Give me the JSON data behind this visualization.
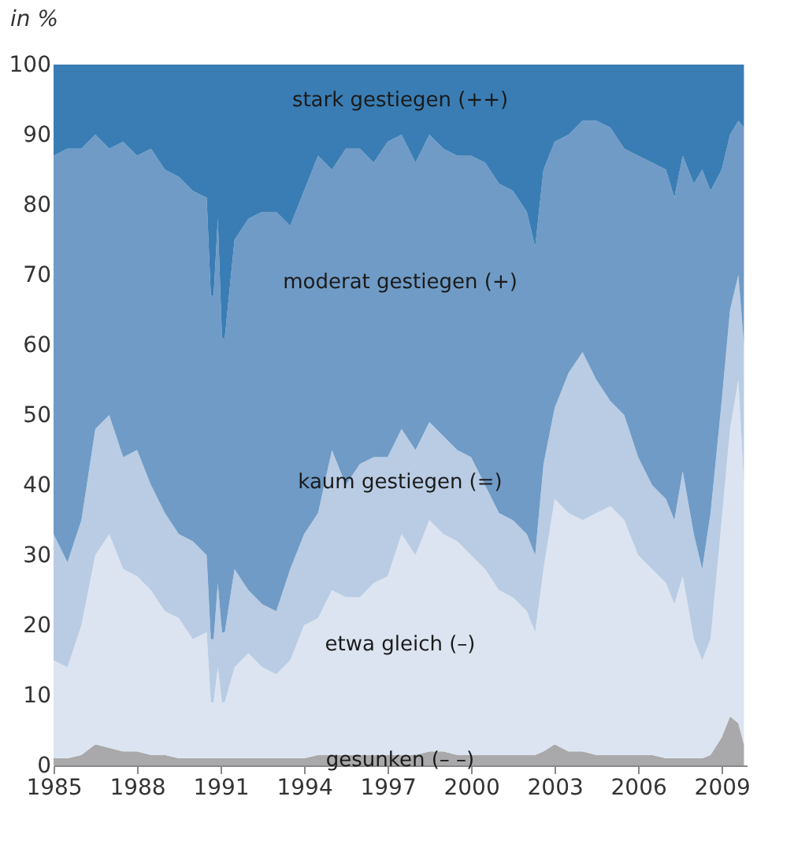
{
  "chart_data": {
    "type": "area",
    "stacked": true,
    "ylabel": "in %",
    "legend": false,
    "grid": false,
    "xlim": [
      1985,
      2009.9
    ],
    "xticks": [
      1985,
      1988,
      1991,
      1994,
      1997,
      2000,
      2003,
      2006,
      2009
    ],
    "ylim": [
      0,
      100
    ],
    "yticks": [
      0,
      10,
      20,
      30,
      40,
      50,
      60,
      70,
      80,
      90,
      100
    ],
    "x": [
      1985.0,
      1985.5,
      1986.0,
      1986.5,
      1987.0,
      1987.5,
      1988.0,
      1988.5,
      1989.0,
      1989.5,
      1990.0,
      1990.5,
      1990.65,
      1990.75,
      1990.9,
      1991.05,
      1991.15,
      1991.5,
      1992.0,
      1992.5,
      1993.0,
      1993.5,
      1994.0,
      1994.5,
      1995.0,
      1995.5,
      1996.0,
      1996.5,
      1997.0,
      1997.5,
      1998.0,
      1998.5,
      1999.0,
      1999.5,
      2000.0,
      2000.5,
      2001.0,
      2001.5,
      2002.0,
      2002.3,
      2002.6,
      2003.0,
      2003.5,
      2004.0,
      2004.5,
      2005.0,
      2005.5,
      2006.0,
      2006.5,
      2007.0,
      2007.3,
      2007.6,
      2008.0,
      2008.3,
      2008.6,
      2009.0,
      2009.3,
      2009.6,
      2009.8
    ],
    "series": [
      {
        "name": "gesunken (– –)",
        "color": "#a9a9ab",
        "values": [
          1,
          1,
          1.5,
          3,
          2.5,
          2,
          2,
          1.5,
          1.5,
          1,
          1,
          1,
          1,
          1,
          1,
          1,
          1,
          1,
          1,
          1,
          1,
          1,
          1,
          1.5,
          1.5,
          1.5,
          1.5,
          1.5,
          1.5,
          1.5,
          1.5,
          2,
          2,
          1.5,
          1.5,
          1.5,
          1.5,
          1.5,
          1.5,
          1.5,
          2,
          3,
          2,
          2,
          1.5,
          1.5,
          1.5,
          1.5,
          1.5,
          1,
          1,
          1,
          1,
          1,
          1.5,
          4,
          7,
          6,
          3
        ]
      },
      {
        "name": "etwa gleich (–)",
        "color": "#dbe4f0",
        "values": [
          14,
          13,
          18.5,
          27,
          30.5,
          26,
          25,
          23.5,
          20.5,
          20,
          17,
          18,
          8,
          8,
          13,
          8,
          8,
          13,
          15,
          13,
          12,
          14,
          19,
          19.5,
          23.5,
          22.5,
          22.5,
          24.5,
          25.5,
          31.5,
          28.5,
          33,
          31,
          30.5,
          28.5,
          26.5,
          23.5,
          22.5,
          20.5,
          17.5,
          26,
          35,
          34,
          33,
          34.5,
          35.5,
          33.5,
          28.5,
          26.5,
          25,
          22,
          26,
          17,
          14,
          16.5,
          31,
          41,
          49,
          37
        ]
      },
      {
        "name": "kaum gestiegen (=)",
        "color": "#b9cce4",
        "values": [
          18,
          15,
          15,
          18,
          17,
          16,
          18,
          15,
          14,
          12,
          14,
          11,
          9,
          9,
          12,
          10,
          10,
          14,
          9,
          9,
          9,
          13,
          13,
          15,
          20,
          16,
          19,
          18,
          17,
          15,
          15,
          14,
          14,
          13,
          14,
          12,
          11,
          11,
          11,
          11,
          15,
          13,
          20,
          24,
          19,
          15,
          15,
          14,
          12,
          12,
          12,
          15,
          15,
          13,
          18,
          17,
          17,
          15,
          20
        ]
      },
      {
        "name": "moderat gestiegen (+)",
        "color": "#6f9bc6",
        "values": [
          54,
          59,
          53,
          42,
          38,
          45,
          42,
          48,
          49,
          51,
          50,
          51,
          49,
          49,
          52,
          42,
          42,
          47,
          53,
          56,
          57,
          49,
          49,
          51,
          40,
          48,
          45,
          42,
          45,
          42,
          41,
          41,
          41,
          42,
          43,
          46,
          47,
          47,
          46,
          44,
          42,
          38,
          34,
          33,
          37,
          39,
          38,
          43,
          46,
          47,
          46,
          45,
          50,
          57,
          46,
          33,
          25,
          22,
          31
        ]
      },
      {
        "name": "stark gestiegen (++)",
        "color": "#3a7db4",
        "values": [
          13,
          12,
          12,
          10,
          12,
          11,
          13,
          12,
          15,
          16,
          18,
          19,
          33,
          33,
          22,
          39,
          39,
          25,
          22,
          21,
          21,
          23,
          18,
          13,
          15,
          12,
          12,
          14,
          11,
          10,
          14,
          10,
          12,
          13,
          13,
          14,
          17,
          18,
          21,
          26,
          15,
          11,
          10,
          8,
          8,
          9,
          12,
          13,
          14,
          15,
          19,
          13,
          17,
          15,
          18,
          15,
          10,
          8,
          9
        ]
      }
    ]
  }
}
